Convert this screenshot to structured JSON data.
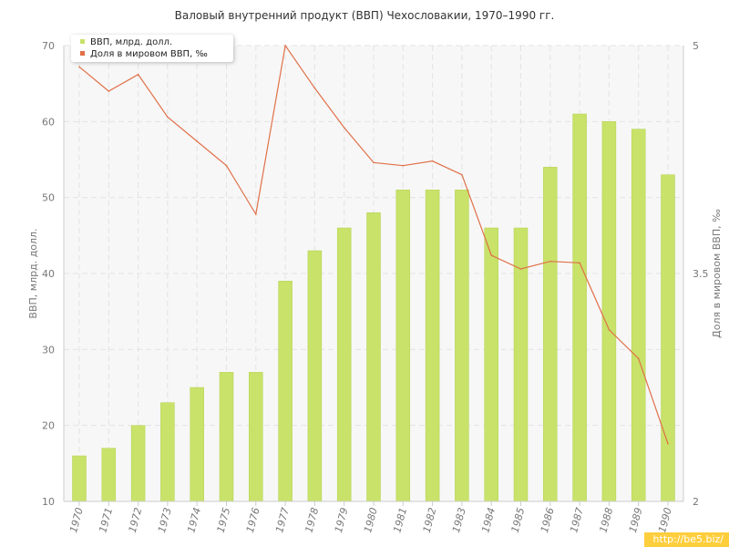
{
  "colors": {
    "bar": "#c8e26a",
    "bar_stroke": "#b5d24f",
    "line": "#e07048",
    "grid": "#e3e3e3",
    "axis_text": "#777777",
    "plot_bg": "#f7f7f7"
  },
  "watermark": "http://be5.biz/",
  "chart_data": {
    "type": "bar",
    "title": "Валовый внутренний продукт (ВВП) Чехословакии, 1970–1990 гг.",
    "categories": [
      "1970",
      "1971",
      "1972",
      "1973",
      "1974",
      "1975",
      "1976",
      "1977",
      "1978",
      "1979",
      "1980",
      "1981",
      "1982",
      "1983",
      "1984",
      "1985",
      "1986",
      "1987",
      "1988",
      "1989",
      "1990"
    ],
    "ylabel": "ВВП, млрд. долл.",
    "ylabel_right": "Доля в мировом ВВП, ‰",
    "ylim": [
      10,
      70
    ],
    "yticks": [
      10,
      20,
      30,
      40,
      50,
      60,
      70
    ],
    "ylim_right": [
      2,
      5
    ],
    "yticks_right": [
      2,
      3.5,
      5
    ],
    "grid": true,
    "legend_position": "top-left",
    "series": [
      {
        "name": "ВВП, млрд. долл.",
        "type": "bar",
        "axis": "left",
        "values": [
          16,
          17,
          20,
          23,
          25,
          27,
          27,
          39,
          43,
          46,
          48,
          51,
          51,
          51,
          46,
          46,
          54,
          61,
          60,
          59,
          53
        ]
      },
      {
        "name": "Доля в мировом ВВП, ‰",
        "type": "line",
        "axis": "right",
        "values": [
          4.86,
          4.7,
          4.81,
          4.53,
          4.37,
          4.21,
          3.89,
          5.0,
          4.72,
          4.46,
          4.23,
          4.21,
          4.24,
          4.15,
          3.62,
          3.53,
          3.58,
          3.57,
          3.13,
          2.94,
          2.38
        ]
      }
    ]
  }
}
